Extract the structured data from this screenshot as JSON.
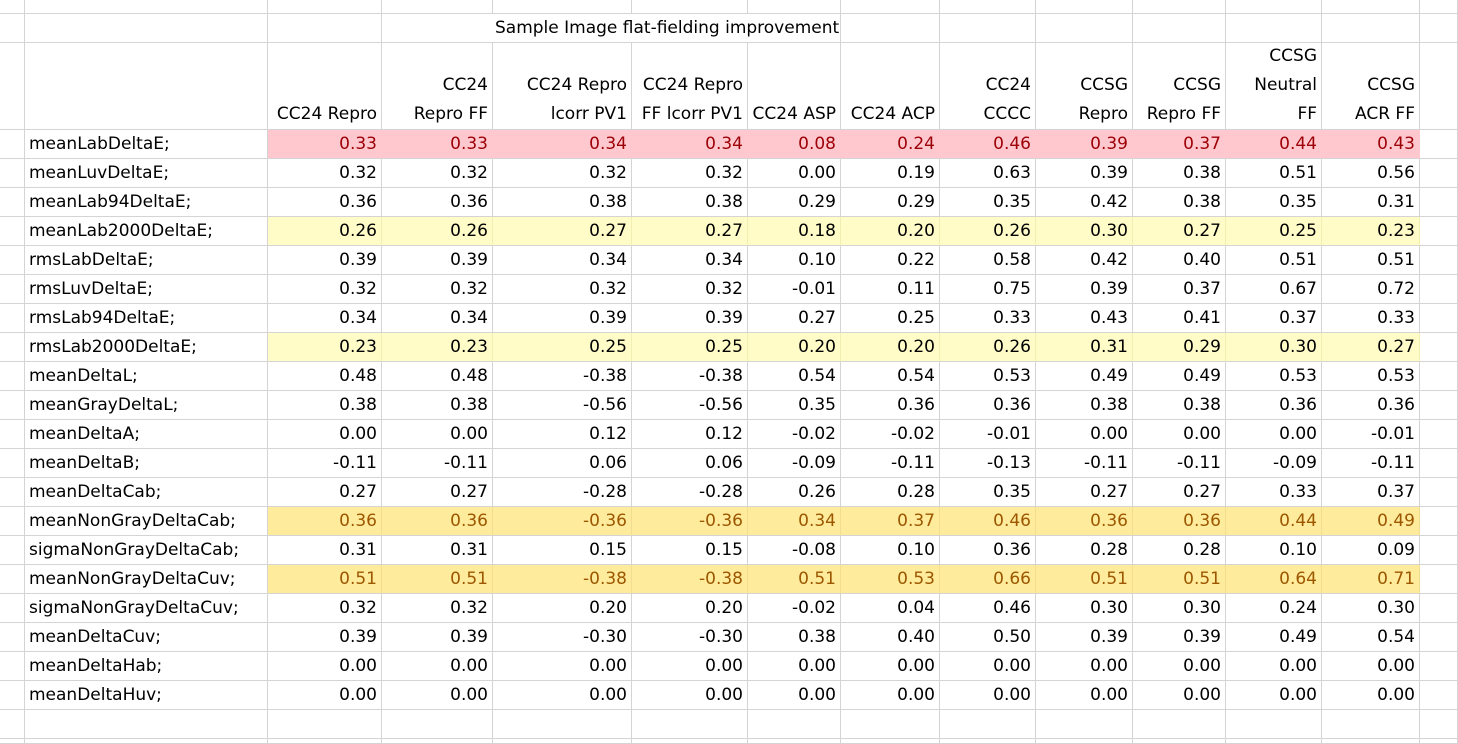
{
  "title": "Sample Image flat-fielding improvement",
  "colors": {
    "pink_fill": "#ffc7ce",
    "pink_text": "#9c0006",
    "light_yellow_fill": "#fffcc8",
    "yellow_fill": "#ffeb9c",
    "yellow_text": "#9c5700",
    "grid": "#d4d4d4"
  },
  "columns": [
    [
      "",
      "",
      "CC24 Repro"
    ],
    [
      "",
      "CC24",
      "Repro FF"
    ],
    [
      "",
      "CC24 Repro",
      "lcorr PV1"
    ],
    [
      "",
      "CC24 Repro",
      "FF lcorr PV1"
    ],
    [
      "",
      "",
      "CC24 ASP"
    ],
    [
      "",
      "",
      "CC24 ACP"
    ],
    [
      "",
      "CC24",
      "CCCC"
    ],
    [
      "",
      "CCSG",
      "Repro"
    ],
    [
      "",
      "CCSG",
      "Repro FF"
    ],
    [
      "CCSG",
      "Neutral",
      "FF"
    ],
    [
      "",
      "CCSG",
      "ACR FF"
    ]
  ],
  "rows": [
    {
      "label": "meanLabDeltaE;",
      "highlight": "pink",
      "values": [
        "0.33",
        "0.33",
        "0.34",
        "0.34",
        "0.08",
        "0.24",
        "0.46",
        "0.39",
        "0.37",
        "0.44",
        "0.43"
      ]
    },
    {
      "label": "meanLuvDeltaE;",
      "highlight": "",
      "values": [
        "0.32",
        "0.32",
        "0.32",
        "0.32",
        "0.00",
        "0.19",
        "0.63",
        "0.39",
        "0.38",
        "0.51",
        "0.56"
      ]
    },
    {
      "label": "meanLab94DeltaE;",
      "highlight": "",
      "values": [
        "0.36",
        "0.36",
        "0.38",
        "0.38",
        "0.29",
        "0.29",
        "0.35",
        "0.42",
        "0.38",
        "0.35",
        "0.31"
      ]
    },
    {
      "label": "meanLab2000DeltaE;",
      "highlight": "lightyellow",
      "values": [
        "0.26",
        "0.26",
        "0.27",
        "0.27",
        "0.18",
        "0.20",
        "0.26",
        "0.30",
        "0.27",
        "0.25",
        "0.23"
      ]
    },
    {
      "label": "rmsLabDeltaE;",
      "highlight": "",
      "values": [
        "0.39",
        "0.39",
        "0.34",
        "0.34",
        "0.10",
        "0.22",
        "0.58",
        "0.42",
        "0.40",
        "0.51",
        "0.51"
      ]
    },
    {
      "label": "rmsLuvDeltaE;",
      "highlight": "",
      "values": [
        "0.32",
        "0.32",
        "0.32",
        "0.32",
        "-0.01",
        "0.11",
        "0.75",
        "0.39",
        "0.37",
        "0.67",
        "0.72"
      ]
    },
    {
      "label": "rmsLab94DeltaE;",
      "highlight": "",
      "values": [
        "0.34",
        "0.34",
        "0.39",
        "0.39",
        "0.27",
        "0.25",
        "0.33",
        "0.43",
        "0.41",
        "0.37",
        "0.33"
      ]
    },
    {
      "label": "rmsLab2000DeltaE;",
      "highlight": "lightyellow",
      "values": [
        "0.23",
        "0.23",
        "0.25",
        "0.25",
        "0.20",
        "0.20",
        "0.26",
        "0.31",
        "0.29",
        "0.30",
        "0.27"
      ]
    },
    {
      "label": "meanDeltaL;",
      "highlight": "",
      "values": [
        "0.48",
        "0.48",
        "-0.38",
        "-0.38",
        "0.54",
        "0.54",
        "0.53",
        "0.49",
        "0.49",
        "0.53",
        "0.53"
      ]
    },
    {
      "label": "meanGrayDeltaL;",
      "highlight": "",
      "values": [
        "0.38",
        "0.38",
        "-0.56",
        "-0.56",
        "0.35",
        "0.36",
        "0.36",
        "0.38",
        "0.38",
        "0.36",
        "0.36"
      ]
    },
    {
      "label": "meanDeltaA;",
      "highlight": "",
      "values": [
        "0.00",
        "0.00",
        "0.12",
        "0.12",
        "-0.02",
        "-0.02",
        "-0.01",
        "0.00",
        "0.00",
        "0.00",
        "-0.01"
      ]
    },
    {
      "label": "meanDeltaB;",
      "highlight": "",
      "values": [
        "-0.11",
        "-0.11",
        "0.06",
        "0.06",
        "-0.09",
        "-0.11",
        "-0.13",
        "-0.11",
        "-0.11",
        "-0.09",
        "-0.11"
      ]
    },
    {
      "label": "meanDeltaCab;",
      "highlight": "",
      "values": [
        "0.27",
        "0.27",
        "-0.28",
        "-0.28",
        "0.26",
        "0.28",
        "0.35",
        "0.27",
        "0.27",
        "0.33",
        "0.37"
      ]
    },
    {
      "label": "meanNonGrayDeltaCab;",
      "highlight": "yellow",
      "values": [
        "0.36",
        "0.36",
        "-0.36",
        "-0.36",
        "0.34",
        "0.37",
        "0.46",
        "0.36",
        "0.36",
        "0.44",
        "0.49"
      ]
    },
    {
      "label": "sigmaNonGrayDeltaCab;",
      "highlight": "",
      "values": [
        "0.31",
        "0.31",
        "0.15",
        "0.15",
        "-0.08",
        "0.10",
        "0.36",
        "0.28",
        "0.28",
        "0.10",
        "0.09"
      ]
    },
    {
      "label": "meanNonGrayDeltaCuv;",
      "highlight": "yellow",
      "values": [
        "0.51",
        "0.51",
        "-0.38",
        "-0.38",
        "0.51",
        "0.53",
        "0.66",
        "0.51",
        "0.51",
        "0.64",
        "0.71"
      ]
    },
    {
      "label": "sigmaNonGrayDeltaCuv;",
      "highlight": "",
      "values": [
        "0.32",
        "0.32",
        "0.20",
        "0.20",
        "-0.02",
        "0.04",
        "0.46",
        "0.30",
        "0.30",
        "0.24",
        "0.30"
      ]
    },
    {
      "label": "meanDeltaCuv;",
      "highlight": "",
      "values": [
        "0.39",
        "0.39",
        "-0.30",
        "-0.30",
        "0.38",
        "0.40",
        "0.50",
        "0.39",
        "0.39",
        "0.49",
        "0.54"
      ]
    },
    {
      "label": "meanDeltaHab;",
      "highlight": "",
      "values": [
        "0.00",
        "0.00",
        "0.00",
        "0.00",
        "0.00",
        "0.00",
        "0.00",
        "0.00",
        "0.00",
        "0.00",
        "0.00"
      ]
    },
    {
      "label": "meanDeltaHuv;",
      "highlight": "",
      "values": [
        "0.00",
        "0.00",
        "0.00",
        "0.00",
        "0.00",
        "0.00",
        "0.00",
        "0.00",
        "0.00",
        "0.00",
        "0.00"
      ]
    }
  ]
}
